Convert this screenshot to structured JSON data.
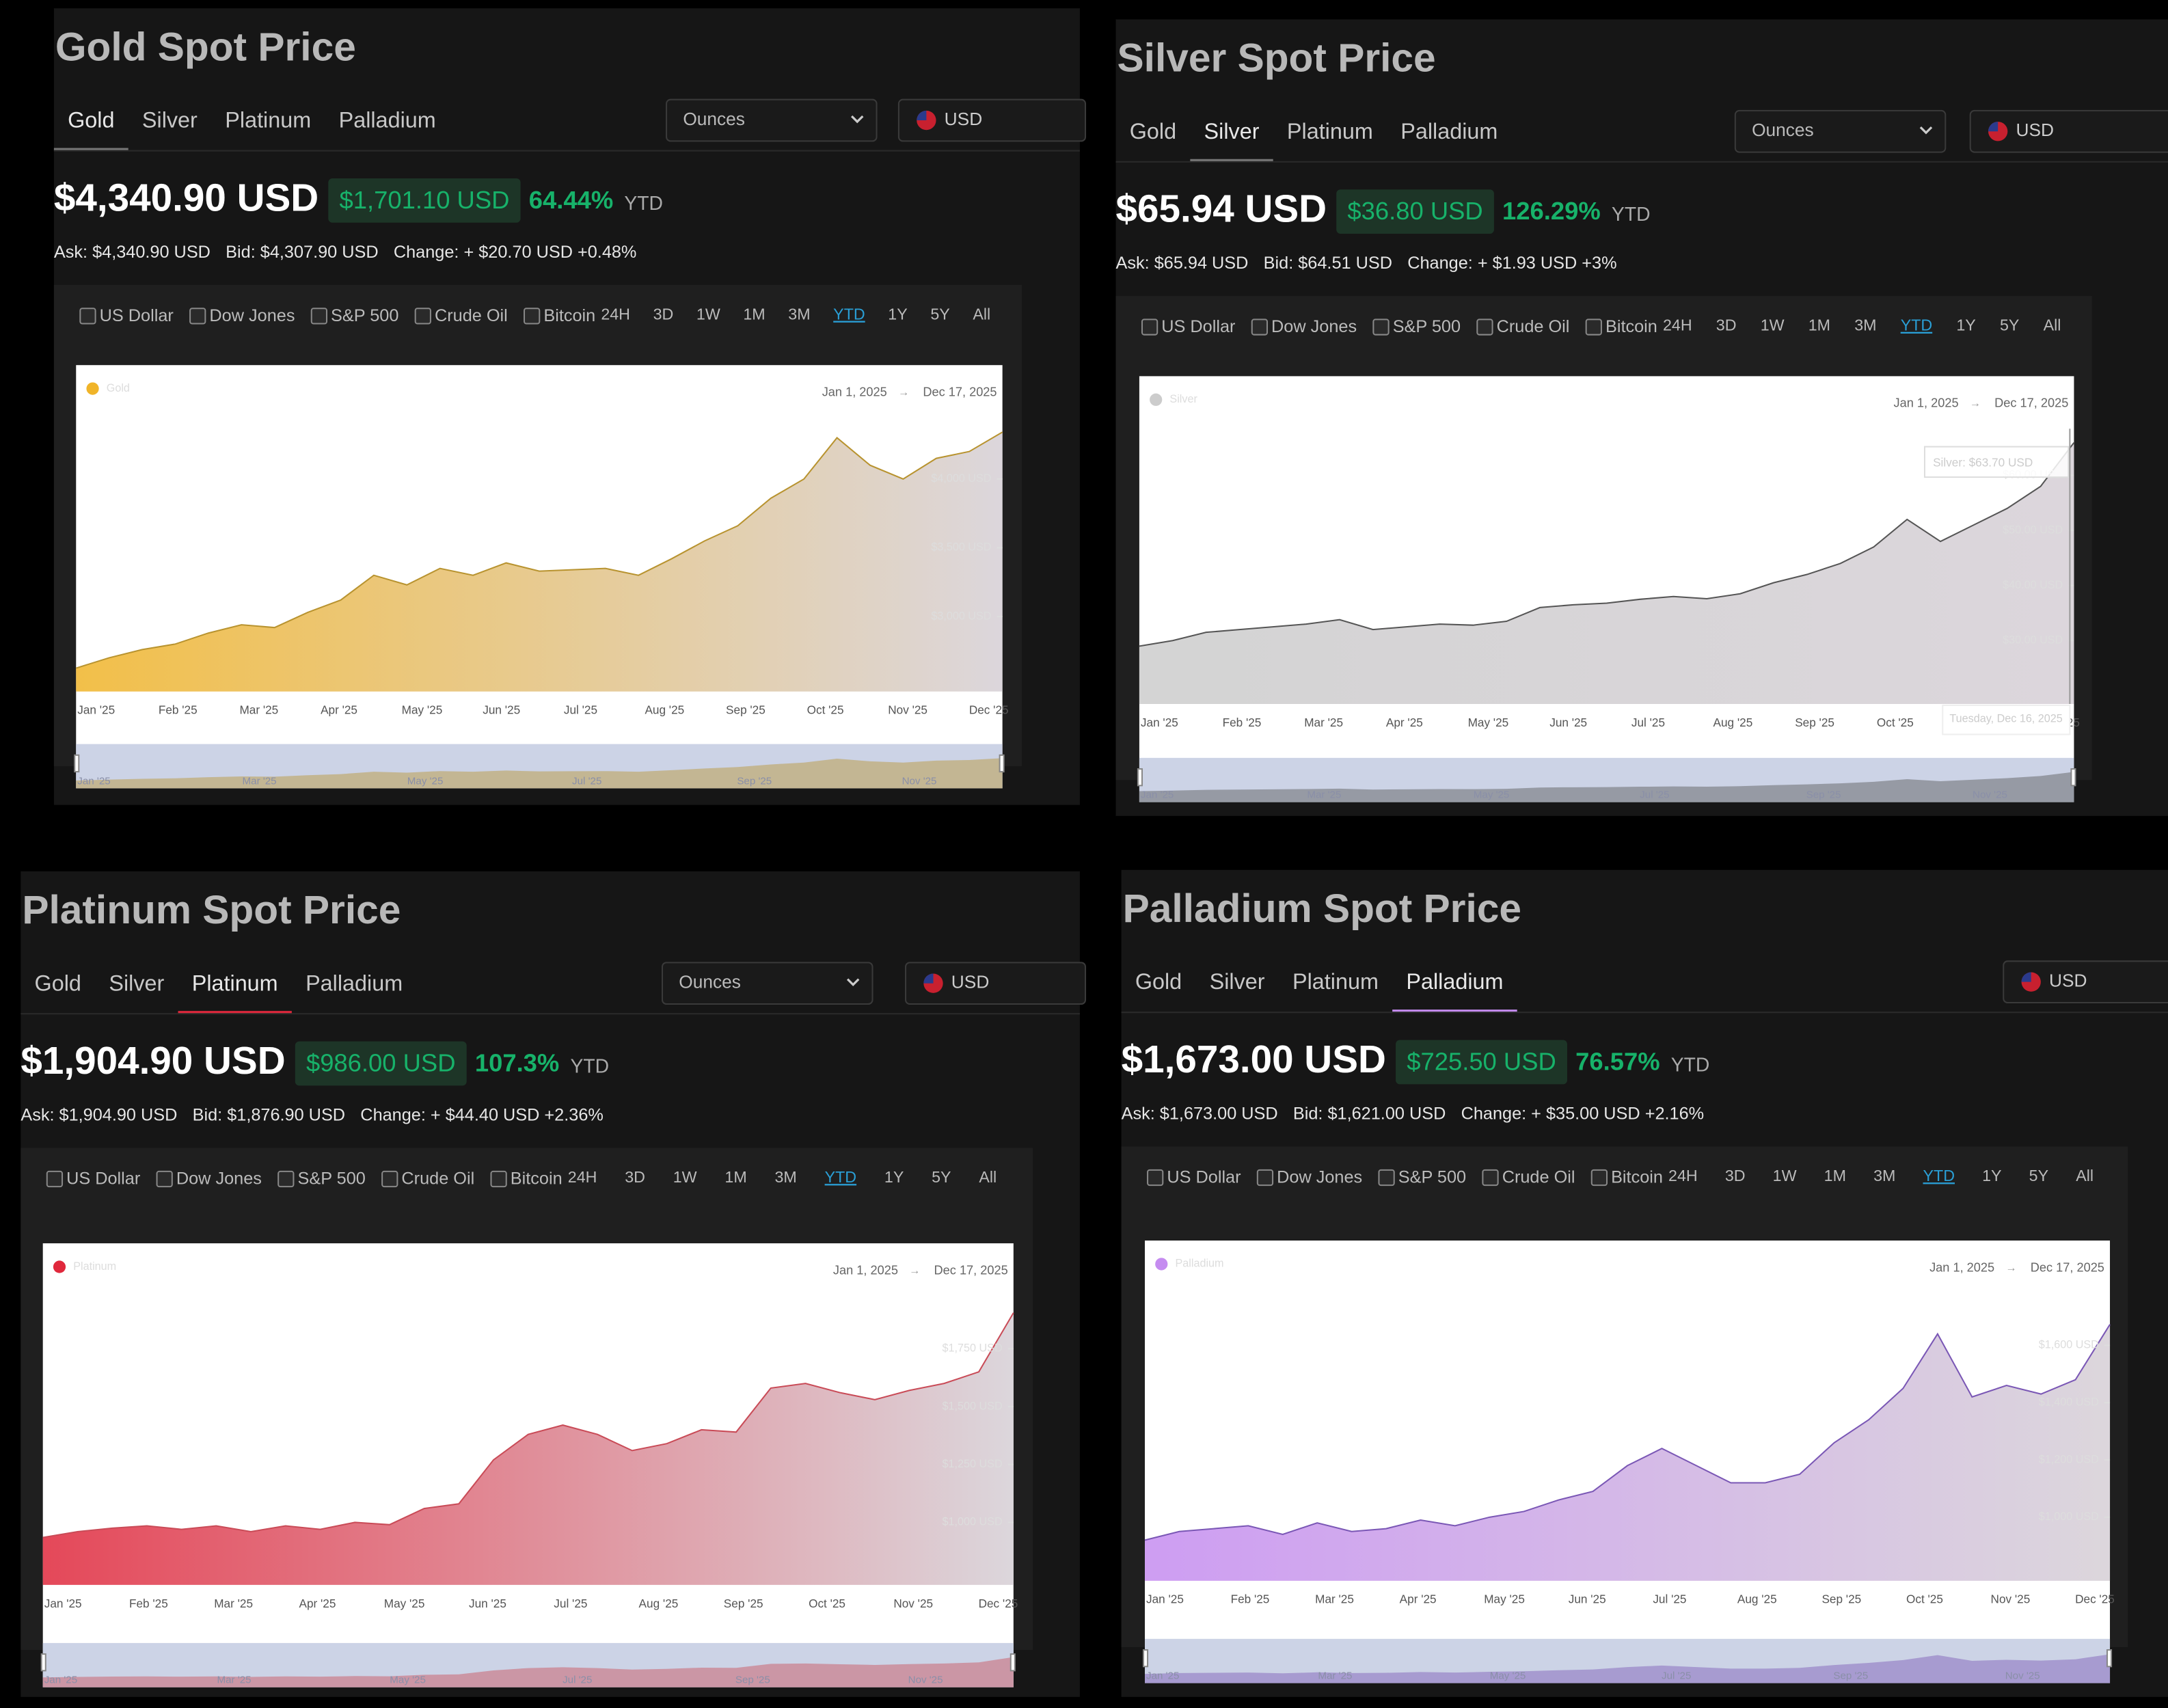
{
  "panels": [
    {
      "title": "Gold Spot Price",
      "tabs": [
        "Gold",
        "Silver",
        "Platinum",
        "Palladium"
      ],
      "active_tab": 0,
      "units": "Ounces",
      "currency": "USD",
      "price": "$4,340.90 USD",
      "change": "$1,701.10 USD",
      "change_pct": "64.44%",
      "period": "YTD",
      "ask": "Ask: $4,340.90 USD",
      "bid": "Bid: $4,307.90 USD",
      "change_line": "Change: + $20.70 USD +0.48%",
      "compare": [
        "US Dollar",
        "Dow Jones",
        "S&P 500",
        "Crude Oil",
        "Bitcoin"
      ],
      "ranges": [
        "24H",
        "3D",
        "1W",
        "1M",
        "3M",
        "YTD",
        "1Y",
        "5Y",
        "All"
      ],
      "active_range": 5,
      "chart_data": {
        "type": "area",
        "legend_corner": "top-left",
        "date_start": "Jan 1, 2025",
        "date_separator": "→",
        "date_end": "Dec 17, 2025",
        "x_labels": [
          "Jan '25",
          "Feb '25",
          "Mar '25",
          "Apr '25",
          "May '25",
          "Jun '25",
          "Jul '25",
          "Aug '25",
          "Sep '25",
          "Oct '25",
          "Nov '25",
          "Dec '25"
        ],
        "navigator_labels": [
          "Jan '25",
          "Mar '25",
          "May '25",
          "Jul '25",
          "Sep '25",
          "Nov '25"
        ],
        "series": [
          {
            "name": "Gold",
            "color": "#f0b429",
            "values": [
              2625,
              2700,
              2760,
              2800,
              2880,
              2940,
              2920,
              3030,
              3120,
              3300,
              3230,
              3350,
              3300,
              3390,
              3330,
              3340,
              3350,
              3300,
              3420,
              3550,
              3660,
              3860,
              4000,
              4300,
              4100,
              4000,
              4150,
              4200,
              4340.9
            ]
          }
        ],
        "ylim": [
          2455,
          4828
        ],
        "yticks": [
          {
            "value": 3000,
            "label": "$3,000 USD"
          },
          {
            "value": 3500,
            "label": "$3,500 USD"
          },
          {
            "value": 4000,
            "label": "$4,000 USD"
          }
        ]
      }
    },
    {
      "title": "Silver Spot Price",
      "tabs": [
        "Gold",
        "Silver",
        "Platinum",
        "Palladium"
      ],
      "active_tab": 1,
      "units": "Ounces",
      "currency": "USD",
      "price": "$65.94 USD",
      "change": "$36.80 USD",
      "change_pct": "126.29%",
      "period": "YTD",
      "ask": "Ask: $65.94 USD",
      "bid": "Bid: $64.51 USD",
      "change_line": "Change: + $1.93 USD +3%",
      "compare": [
        "US Dollar",
        "Dow Jones",
        "S&P 500",
        "Crude Oil",
        "Bitcoin"
      ],
      "ranges": [
        "24H",
        "3D",
        "1W",
        "1M",
        "3M",
        "YTD",
        "1Y",
        "5Y",
        "All"
      ],
      "active_range": 5,
      "chart_data": {
        "type": "area",
        "legend_corner": "top-left",
        "date_start": "Jan 1, 2025",
        "date_separator": "→",
        "date_end": "Dec 17, 2025",
        "x_labels": [
          "Jan '25",
          "Feb '25",
          "Mar '25",
          "Apr '25",
          "May '25",
          "Jun '25",
          "Jul '25",
          "Aug '25",
          "Sep '25",
          "Oct '25",
          "Nov '25",
          "Dec '25"
        ],
        "navigator_labels": [
          "Jan '25",
          "Mar '25",
          "May '25",
          "Jul '25",
          "Sep '25",
          "Nov '25"
        ],
        "tooltip": "Silver: $63.70 USD",
        "tooltip_date": "Tuesday, Dec 16, 2025",
        "series": [
          {
            "name": "Silver",
            "color": "#cccccc",
            "values": [
              29,
              30,
              31.5,
              32,
              32.5,
              33,
              33.8,
              32,
              32.5,
              33,
              32.8,
              33.5,
              36,
              36.5,
              36.8,
              37.5,
              38,
              37.6,
              38.5,
              40.5,
              42,
              44,
              47,
              52,
              48,
              51,
              54,
              58,
              65.94
            ]
          }
        ],
        "ylim": [
          18.5,
          78
        ],
        "yticks": [
          {
            "value": 30,
            "label": "$30.00 USD"
          },
          {
            "value": 40,
            "label": "$40.00 USD"
          },
          {
            "value": 50,
            "label": "$50.00 USD"
          },
          {
            "value": 60,
            "label": "$60.00 USD"
          }
        ]
      }
    },
    {
      "title": "Platinum Spot Price",
      "tabs": [
        "Gold",
        "Silver",
        "Platinum",
        "Palladium"
      ],
      "active_tab": 2,
      "units": "Ounces",
      "currency": "USD",
      "price": "$1,904.90 USD",
      "change": "$986.00 USD",
      "change_pct": "107.3%",
      "period": "YTD",
      "ask": "Ask: $1,904.90 USD",
      "bid": "Bid: $1,876.90 USD",
      "change_line": "Change: + $44.40 USD +2.36%",
      "compare": [
        "US Dollar",
        "Dow Jones",
        "S&P 500",
        "Crude Oil",
        "Bitcoin"
      ],
      "ranges": [
        "24H",
        "3D",
        "1W",
        "1M",
        "3M",
        "YTD",
        "1Y",
        "5Y",
        "All"
      ],
      "active_range": 5,
      "chart_data": {
        "type": "area",
        "legend_corner": "top-left",
        "date_start": "Jan 1, 2025",
        "date_separator": "→",
        "date_end": "Dec 17, 2025",
        "x_labels": [
          "Jan '25",
          "Feb '25",
          "Mar '25",
          "Apr '25",
          "May '25",
          "Jun '25",
          "Jul '25",
          "Aug '25",
          "Sep '25",
          "Oct '25",
          "Nov '25",
          "Dec '25"
        ],
        "navigator_labels": [
          "Jan '25",
          "Mar '25",
          "May '25",
          "Jul '25",
          "Sep '25",
          "Nov '25"
        ],
        "series": [
          {
            "name": "Platinum",
            "color": "#e0283c",
            "values": [
              935,
              960,
              975,
              985,
              970,
              985,
              960,
              985,
              970,
              1000,
              990,
              1060,
              1080,
              1270,
              1380,
              1420,
              1380,
              1310,
              1340,
              1400,
              1390,
              1580,
              1600,
              1560,
              1530,
              1570,
              1600,
              1650,
              1904.9
            ]
          }
        ],
        "ylim": [
          730,
          2205
        ],
        "yticks": [
          {
            "value": 1000,
            "label": "$1,000 USD"
          },
          {
            "value": 1250,
            "label": "$1,250 USD"
          },
          {
            "value": 1500,
            "label": "$1,500 USD"
          },
          {
            "value": 1750,
            "label": "$1,750 USD"
          }
        ]
      }
    },
    {
      "title": "Palladium Spot Price",
      "tabs": [
        "Gold",
        "Silver",
        "Platinum",
        "Palladium"
      ],
      "active_tab": 3,
      "currency": "USD",
      "price": "$1,673.00 USD",
      "change": "$725.50 USD",
      "change_pct": "76.57%",
      "period": "YTD",
      "ask": "Ask: $1,673.00 USD",
      "bid": "Bid: $1,621.00 USD",
      "change_line": "Change: + $35.00 USD +2.16%",
      "compare": [
        "US Dollar",
        "Dow Jones",
        "S&P 500",
        "Crude Oil",
        "Bitcoin"
      ],
      "ranges": [
        "24H",
        "3D",
        "1W",
        "1M",
        "3M",
        "YTD",
        "1Y",
        "5Y",
        "All"
      ],
      "active_range": 5,
      "chart_data": {
        "type": "area",
        "legend_corner": "top-left",
        "date_start": "Jan 1, 2025",
        "date_separator": "→",
        "date_end": "Dec 17, 2025",
        "x_labels": [
          "Jan '25",
          "Feb '25",
          "Mar '25",
          "Apr '25",
          "May '25",
          "Jun '25",
          "Jul '25",
          "Aug '25",
          "Sep '25",
          "Oct '25",
          "Nov '25",
          "Dec '25"
        ],
        "navigator_labels": [
          "Jan '25",
          "Mar '25",
          "May '25",
          "Jul '25",
          "Sep '25",
          "Nov '25"
        ],
        "series": [
          {
            "name": "Palladium",
            "color": "#c58cf0",
            "values": [
              920,
              950,
              960,
              970,
              940,
              980,
              950,
              960,
              990,
              970,
              1000,
              1020,
              1060,
              1090,
              1180,
              1240,
              1180,
              1120,
              1120,
              1150,
              1260,
              1340,
              1450,
              1640,
              1420,
              1460,
              1430,
              1480,
              1673
            ]
          }
        ],
        "ylim": [
          778,
          1966
        ],
        "yticks": [
          {
            "value": 1000,
            "label": "$1,000 USD"
          },
          {
            "value": 1200,
            "label": "$1,200 USD"
          },
          {
            "value": 1400,
            "label": "$1,400 USD"
          },
          {
            "value": 1600,
            "label": "$1,600 USD"
          }
        ]
      }
    }
  ]
}
